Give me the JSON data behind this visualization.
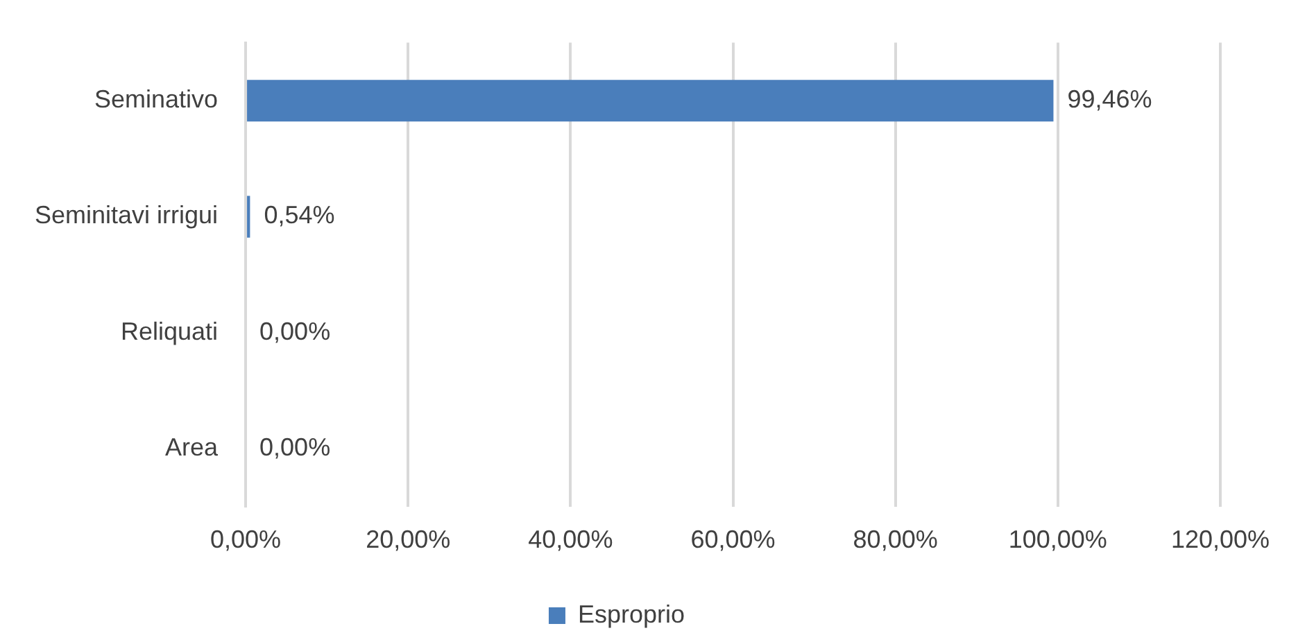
{
  "chart_data": {
    "type": "bar",
    "orientation": "horizontal",
    "categories": [
      "Seminativo",
      "Seminitavi irrigui",
      "Reliquati",
      "Area"
    ],
    "series": [
      {
        "name": "Esproprio",
        "color": "#4a7ebb",
        "values": [
          99.46,
          0.54,
          0,
          0
        ],
        "value_labels": [
          "99,46%",
          "0,54%",
          "0,00%",
          "0,00%"
        ]
      }
    ],
    "xlim": [
      0,
      120
    ],
    "xticks": [
      {
        "value": 0,
        "label": "0,00%"
      },
      {
        "value": 20,
        "label": "20,00%"
      },
      {
        "value": 40,
        "label": "40,00%"
      },
      {
        "value": 60,
        "label": "60,00%"
      },
      {
        "value": 80,
        "label": "80,00%"
      },
      {
        "value": 100,
        "label": "100,00%"
      },
      {
        "value": 120,
        "label": "120,00%"
      }
    ],
    "grid": "x",
    "legend": "bottom"
  }
}
